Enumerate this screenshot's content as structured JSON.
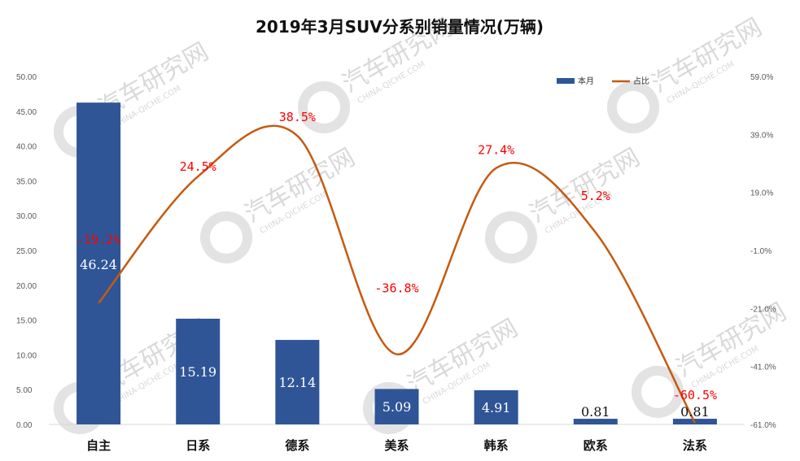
{
  "chart_data": {
    "type": "bar+line",
    "title": "2019年3月SUV分系别销量情况(万辆)",
    "categories": [
      "自主",
      "日系",
      "德系",
      "美系",
      "韩系",
      "欧系",
      "法系"
    ],
    "series": [
      {
        "name": "本月",
        "type": "bar",
        "axis": "left",
        "color": "#2F5597",
        "values": [
          46.24,
          15.19,
          12.14,
          5.09,
          4.91,
          0.81,
          0.81
        ],
        "labels": [
          "46.24",
          "15.19",
          "12.14",
          "5.09",
          "4.91",
          "0.81",
          "0.81"
        ]
      },
      {
        "name": "占比",
        "type": "line",
        "axis": "right",
        "color": "#C55A11",
        "values": [
          -19.2,
          24.5,
          38.5,
          -36.8,
          27.4,
          5.2,
          -60.5
        ],
        "labels": [
          "-19.2%",
          "24.5%",
          "38.5%",
          "-36.8%",
          "27.4%",
          "5.2%",
          "-60.5%"
        ]
      }
    ],
    "left_axis": {
      "min": 0,
      "max": 50,
      "step": 5,
      "ticks": [
        "0.00",
        "5.00",
        "10.00",
        "15.00",
        "20.00",
        "25.00",
        "30.00",
        "35.00",
        "40.00",
        "45.00",
        "50.00"
      ]
    },
    "right_axis": {
      "min": -61,
      "max": 59,
      "step": 20,
      "ticks": [
        "-61.0%",
        "-41.0%",
        "-21.0%",
        "-1.0%",
        "19.0%",
        "39.0%",
        "59.0%"
      ]
    },
    "legend": [
      "本月",
      "占比"
    ],
    "legend_position": "top-right"
  },
  "watermark": {
    "cn": "汽车研究网",
    "en": "CHINA-QICHE.COM"
  }
}
